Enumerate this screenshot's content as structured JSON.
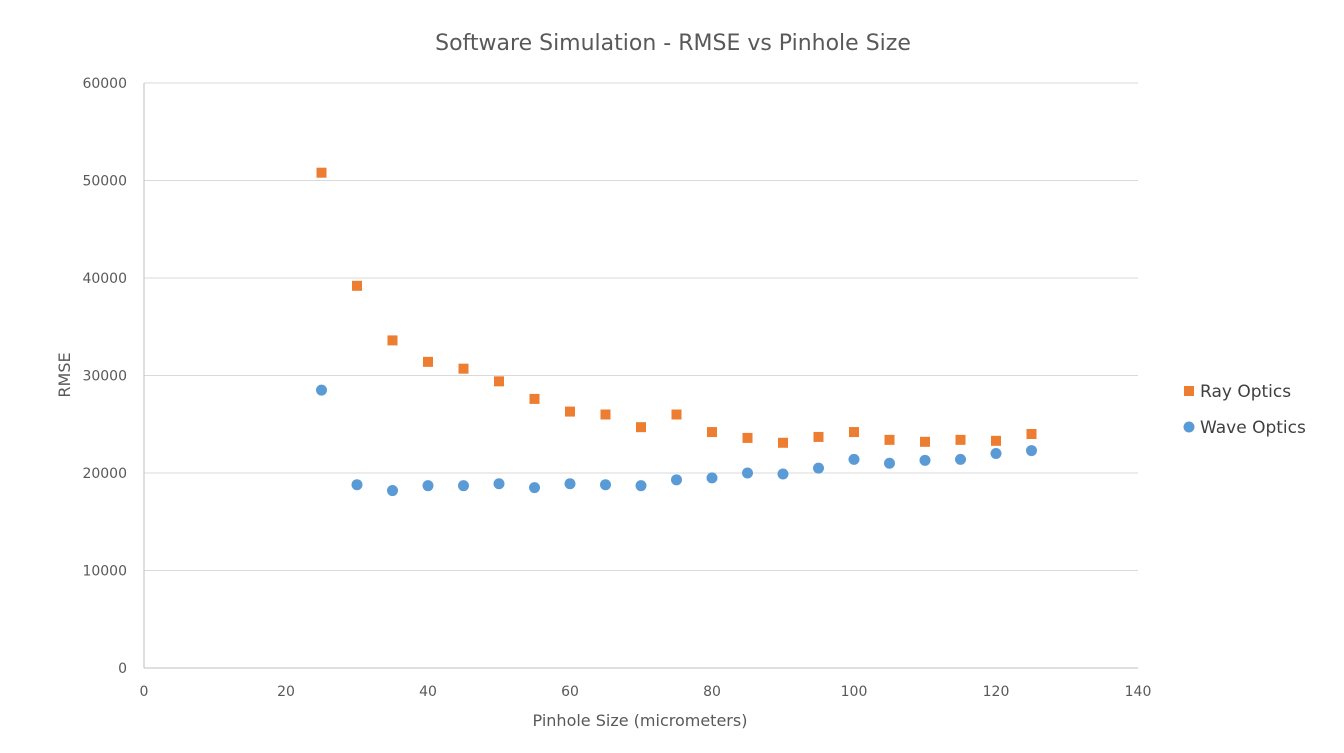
{
  "chart_data": {
    "type": "scatter",
    "title": "Software Simulation - RMSE vs Pinhole Size",
    "xlabel": "Pinhole Size (micrometers)",
    "ylabel": "RMSE",
    "xlim": [
      0,
      140
    ],
    "ylim": [
      0,
      60000
    ],
    "xticks": [
      0,
      20,
      40,
      60,
      80,
      100,
      120,
      140
    ],
    "yticks": [
      0,
      10000,
      20000,
      30000,
      40000,
      50000,
      60000
    ],
    "grid": "horizontal",
    "legend": "right",
    "series": [
      {
        "name": "Ray Optics",
        "marker": "square",
        "color": "#ed7d31",
        "x": [
          25,
          30,
          35,
          40,
          45,
          50,
          55,
          60,
          65,
          70,
          75,
          80,
          85,
          90,
          95,
          100,
          105,
          110,
          115,
          120,
          125
        ],
        "y": [
          50800,
          39200,
          33600,
          31400,
          30700,
          29400,
          27600,
          26300,
          26000,
          24700,
          26000,
          24200,
          23600,
          23100,
          23700,
          24200,
          23400,
          23200,
          23400,
          23300,
          24000
        ]
      },
      {
        "name": "Wave Optics",
        "marker": "circle",
        "color": "#5b9bd5",
        "x": [
          25,
          30,
          35,
          40,
          45,
          50,
          55,
          60,
          65,
          70,
          75,
          80,
          85,
          90,
          95,
          100,
          105,
          110,
          115,
          120,
          125
        ],
        "y": [
          28500,
          18800,
          18200,
          18700,
          18700,
          18900,
          18500,
          18900,
          18800,
          18700,
          19300,
          19500,
          20000,
          19900,
          20500,
          21400,
          21000,
          21300,
          21400,
          22000,
          22300
        ]
      }
    ]
  }
}
